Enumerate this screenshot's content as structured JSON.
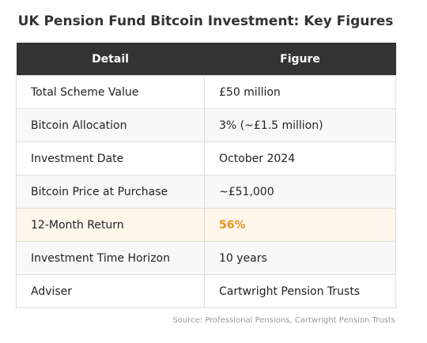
{
  "title": "UK Pension Fund Bitcoin Investment: Key Figures",
  "table": {
    "headers": [
      "Detail",
      "Figure"
    ],
    "rows": [
      {
        "detail": "Total Scheme Value",
        "figure": "£50 million"
      },
      {
        "detail": "Bitcoin Allocation",
        "figure": "3% (~£1.5 million)"
      },
      {
        "detail": "Investment Date",
        "figure": "October 2024"
      },
      {
        "detail": "Bitcoin Price at Purchase",
        "figure": "~£51,000"
      },
      {
        "detail": "12-Month Return",
        "figure": "56%"
      },
      {
        "detail": "Investment Time Horizon",
        "figure": "10 years"
      },
      {
        "detail": "Adviser",
        "figure": "Cartwright Pension Trusts"
      }
    ]
  },
  "source": "Source: Professional Pensions, Cartwright Pension Trusts",
  "colors": {
    "header_bg": "#333333",
    "highlight_row_bg": "#fff6ec",
    "highlight_text": "#e8931c"
  }
}
